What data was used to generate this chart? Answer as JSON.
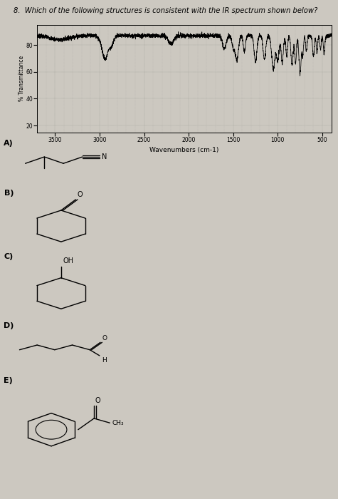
{
  "title": "8.  Which of the following structures is consistent with the IR spectrum shown below?",
  "bg_color": "#ccc8c0",
  "ir_ylabel": "% Transmittance",
  "ir_xlabel": "Wavenumbers (cm-1)",
  "ir_yticks": [
    20,
    40,
    60,
    80
  ],
  "ir_xticks": [
    3500,
    3000,
    2500,
    2000,
    1500,
    1000,
    500
  ],
  "ir_ylim": [
    15,
    95
  ],
  "ir_xlim": [
    3700,
    400
  ],
  "choices": [
    "A)",
    "B)",
    "C)",
    "D)",
    "E)"
  ]
}
